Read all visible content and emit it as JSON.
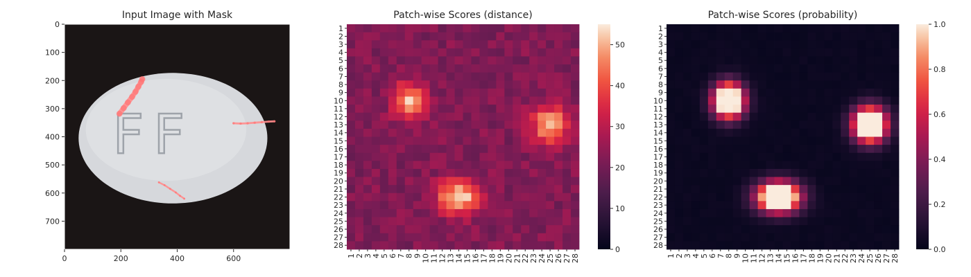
{
  "chart_data": [
    {
      "type": "image",
      "title": "Input Image with Mask",
      "xlim": [
        0,
        800
      ],
      "ylim": [
        800,
        0
      ],
      "xticks": [
        0,
        200,
        400,
        600
      ],
      "yticks": [
        0,
        100,
        200,
        300,
        400,
        500,
        600,
        700
      ],
      "image": {
        "background": "#1a1515",
        "pill": {
          "cx": 385,
          "cy": 405,
          "rx": 335,
          "ry": 232,
          "color": "#d6d8dc"
        },
        "embossed_text": "FF",
        "mask_color": "#ff8f8f",
        "mask_strokes": [
          {
            "points": [
              [
                195,
                318
              ],
              [
                210,
                298
              ],
              [
                225,
                278
              ],
              [
                240,
                258
              ],
              [
                252,
                240
              ],
              [
                262,
                222
              ],
              [
                272,
                205
              ],
              [
                276,
                195
              ]
            ],
            "width": 18
          },
          {
            "points": [
              [
                600,
                352
              ],
              [
                625,
                353
              ],
              [
                650,
                352
              ],
              [
                675,
                350
              ],
              [
                700,
                348
              ],
              [
                725,
                346
              ],
              [
                745,
                345
              ]
            ],
            "width": 7
          },
          {
            "points": [
              [
                335,
                562
              ],
              [
                355,
                572
              ],
              [
                375,
                585
              ],
              [
                395,
                598
              ],
              [
                410,
                610
              ],
              [
                425,
                620
              ]
            ],
            "width": 6
          }
        ]
      }
    },
    {
      "type": "heatmap",
      "title": "Patch-wise Scores (distance)",
      "rows": 28,
      "cols": 28,
      "xticks": [
        "1",
        "2",
        "3",
        "4",
        "5",
        "6",
        "7",
        "8",
        "9",
        "10",
        "11",
        "12",
        "13",
        "14",
        "15",
        "16",
        "17",
        "18",
        "19",
        "20",
        "21",
        "22",
        "23",
        "24",
        "25",
        "26",
        "27",
        "28"
      ],
      "yticks": [
        "1",
        "2",
        "3",
        "4",
        "5",
        "6",
        "7",
        "8",
        "9",
        "10",
        "11",
        "12",
        "13",
        "14",
        "15",
        "16",
        "17",
        "18",
        "19",
        "20",
        "21",
        "22",
        "23",
        "24",
        "25",
        "26",
        "27",
        "28"
      ],
      "vmin": 0,
      "vmax": 55,
      "colormap": "rocket",
      "colorbar_ticks": [
        0,
        10,
        20,
        30,
        40,
        50
      ],
      "background_level": 22,
      "hotspots": [
        {
          "row": 10,
          "col": 8,
          "peak": 50,
          "sigma_row": 1.6,
          "sigma_col": 1.4
        },
        {
          "row": 13,
          "col": 25,
          "peak": 52,
          "sigma_row": 1.6,
          "sigma_col": 1.6
        },
        {
          "row": 22,
          "col": 14,
          "peak": 55,
          "sigma_row": 1.5,
          "sigma_col": 1.8
        }
      ]
    },
    {
      "type": "heatmap",
      "title": "Patch-wise Scores (probability)",
      "rows": 28,
      "cols": 28,
      "xticks": [
        "1",
        "2",
        "3",
        "4",
        "5",
        "6",
        "7",
        "8",
        "9",
        "10",
        "11",
        "12",
        "13",
        "14",
        "15",
        "16",
        "17",
        "18",
        "19",
        "20",
        "21",
        "22",
        "23",
        "24",
        "25",
        "26",
        "27",
        "28"
      ],
      "yticks": [
        "1",
        "2",
        "3",
        "4",
        "5",
        "6",
        "7",
        "8",
        "9",
        "10",
        "11",
        "12",
        "13",
        "14",
        "15",
        "16",
        "17",
        "18",
        "19",
        "20",
        "21",
        "22",
        "23",
        "24",
        "25",
        "26",
        "27",
        "28"
      ],
      "vmin": 0,
      "vmax": 1.0,
      "colormap": "rocket",
      "colorbar_ticks": [
        0.0,
        0.2,
        0.4,
        0.6,
        0.8,
        1.0
      ],
      "colorbar_tick_labels": [
        "0.0",
        "0.2",
        "0.4",
        "0.6",
        "0.8",
        "1.0"
      ],
      "background_level": 0.02,
      "hotspots": [
        {
          "row": 10,
          "col": 8,
          "peak": 1.0,
          "sigma_row": 1.5,
          "sigma_col": 1.3
        },
        {
          "row": 13,
          "col": 25,
          "peak": 1.0,
          "sigma_row": 1.5,
          "sigma_col": 1.4
        },
        {
          "row": 22,
          "col": 14,
          "peak": 1.0,
          "sigma_row": 1.3,
          "sigma_col": 1.8
        }
      ]
    }
  ]
}
